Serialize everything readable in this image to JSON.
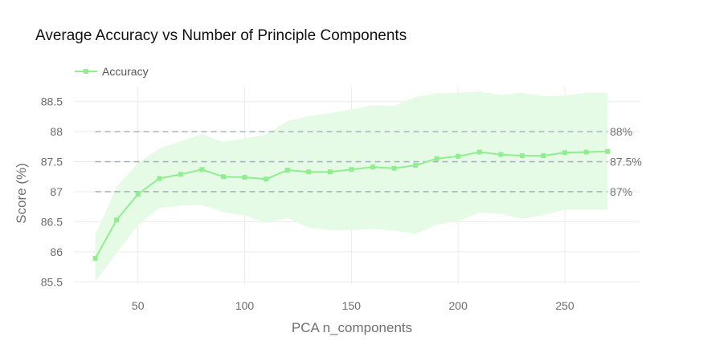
{
  "chart_data": {
    "type": "line",
    "title": "Average Accuracy vs Number of Principle Components",
    "xlabel": "PCA n_components",
    "ylabel": "Score (%)",
    "xlim": [
      20,
      285
    ],
    "ylim": [
      85.45,
      88.75
    ],
    "x_ticks": [
      50,
      100,
      150,
      200,
      250
    ],
    "x_tick_labels": [
      "50",
      "100",
      "150",
      "200",
      "250"
    ],
    "y_ticks": [
      85.5,
      86,
      86.5,
      87,
      87.5,
      88,
      88.5
    ],
    "y_tick_labels": [
      "85.5",
      "86",
      "86.5",
      "87",
      "87.5",
      "88",
      "88.5"
    ],
    "grid": true,
    "legend_position": "top-left",
    "series": [
      {
        "name": "Accuracy",
        "color": "#90ee90",
        "marker": "square",
        "x": [
          30,
          40,
          50,
          60,
          70,
          80,
          90,
          100,
          110,
          120,
          130,
          140,
          150,
          160,
          170,
          180,
          190,
          200,
          210,
          220,
          230,
          240,
          250,
          260,
          270
        ],
        "y": [
          85.89,
          86.53,
          86.96,
          87.22,
          87.29,
          87.37,
          87.25,
          87.24,
          87.21,
          87.36,
          87.33,
          87.33,
          87.37,
          87.41,
          87.39,
          87.44,
          87.55,
          87.59,
          87.66,
          87.62,
          87.6,
          87.6,
          87.65,
          87.66,
          87.67
        ],
        "band_upper": [
          86.28,
          87.08,
          87.48,
          87.72,
          87.84,
          87.96,
          87.83,
          87.89,
          87.95,
          88.18,
          88.26,
          88.31,
          88.37,
          88.44,
          88.43,
          88.58,
          88.64,
          88.65,
          88.67,
          88.61,
          88.65,
          88.59,
          88.6,
          88.65,
          88.65
        ],
        "band_lower": [
          85.5,
          85.98,
          86.44,
          86.73,
          86.77,
          86.78,
          86.66,
          86.6,
          86.48,
          86.56,
          86.4,
          86.36,
          86.36,
          86.38,
          86.35,
          86.3,
          86.45,
          86.51,
          86.65,
          86.63,
          86.55,
          86.61,
          86.7,
          86.7,
          86.7
        ],
        "band_color": "#e6fbe6"
      }
    ],
    "reference_lines": [
      {
        "y": 88,
        "label": "88%"
      },
      {
        "y": 87.5,
        "label": "87.5%"
      },
      {
        "y": 87,
        "label": "87%"
      }
    ],
    "reference_line_color": "#aab1bf"
  }
}
